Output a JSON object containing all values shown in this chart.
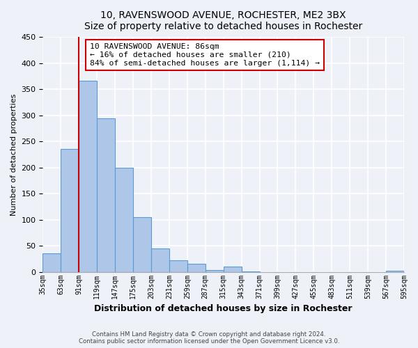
{
  "title": "10, RAVENSWOOD AVENUE, ROCHESTER, ME2 3BX",
  "subtitle": "Size of property relative to detached houses in Rochester",
  "xlabel": "Distribution of detached houses by size in Rochester",
  "ylabel": "Number of detached properties",
  "bar_values": [
    35,
    236,
    366,
    295,
    199,
    105,
    45,
    22,
    15,
    4,
    10,
    1,
    0,
    0,
    0,
    0,
    0,
    0,
    0,
    2
  ],
  "bar_labels": [
    "35sqm",
    "63sqm",
    "91sqm",
    "119sqm",
    "147sqm",
    "175sqm",
    "203sqm",
    "231sqm",
    "259sqm",
    "287sqm",
    "315sqm",
    "343sqm",
    "371sqm",
    "399sqm",
    "427sqm",
    "455sqm",
    "483sqm",
    "511sqm",
    "539sqm",
    "567sqm",
    "595sqm"
  ],
  "bar_color": "#aec6e8",
  "bar_edge_color": "#5b9bd5",
  "ylim": [
    0,
    450
  ],
  "yticks": [
    0,
    50,
    100,
    150,
    200,
    250,
    300,
    350,
    400,
    450
  ],
  "annotation_text": "10 RAVENSWOOD AVENUE: 86sqm\n← 16% of detached houses are smaller (210)\n84% of semi-detached houses are larger (1,114) →",
  "annotation_box_color": "#ffffff",
  "annotation_box_edge": "#cc0000",
  "property_line_color": "#cc0000",
  "property_line_x": 1.5,
  "footer_line1": "Contains HM Land Registry data © Crown copyright and database right 2024.",
  "footer_line2": "Contains public sector information licensed under the Open Government Licence v3.0.",
  "background_color": "#eef2f8",
  "grid_color": "#ffffff"
}
